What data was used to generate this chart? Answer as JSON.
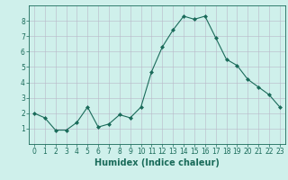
{
  "x": [
    0,
    1,
    2,
    3,
    4,
    5,
    6,
    7,
    8,
    9,
    10,
    11,
    12,
    13,
    14,
    15,
    16,
    17,
    18,
    19,
    20,
    21,
    22,
    23
  ],
  "y": [
    2.0,
    1.7,
    0.9,
    0.9,
    1.4,
    2.4,
    1.1,
    1.3,
    1.9,
    1.7,
    2.4,
    4.7,
    6.3,
    7.4,
    8.3,
    8.1,
    8.3,
    6.9,
    5.5,
    5.1,
    4.2,
    3.7,
    3.2,
    2.4
  ],
  "xlabel": "Humidex (Indice chaleur)",
  "ylim": [
    0,
    9
  ],
  "xlim": [
    -0.5,
    23.5
  ],
  "yticks": [
    1,
    2,
    3,
    4,
    5,
    6,
    7,
    8
  ],
  "xticks": [
    0,
    1,
    2,
    3,
    4,
    5,
    6,
    7,
    8,
    9,
    10,
    11,
    12,
    13,
    14,
    15,
    16,
    17,
    18,
    19,
    20,
    21,
    22,
    23
  ],
  "line_color": "#1a6b5a",
  "marker": "D",
  "marker_size": 2.0,
  "bg_color": "#cff0eb",
  "grid_color": "#b8b8c8",
  "xlabel_fontsize": 7,
  "tick_fontsize": 5.5,
  "linewidth": 0.8
}
